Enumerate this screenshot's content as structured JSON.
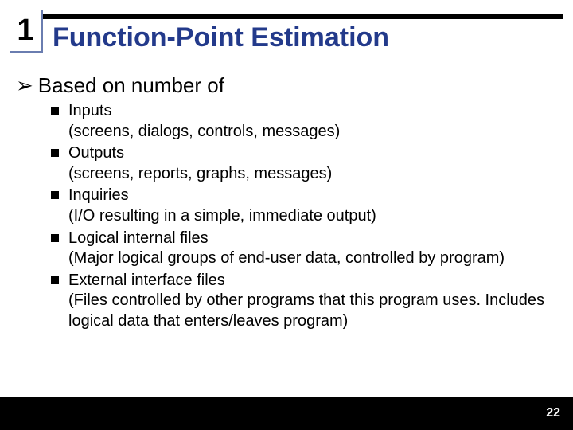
{
  "colors": {
    "title_color": "#233a8b",
    "rule_color": "#000000",
    "box_border": "#6a7db0",
    "text_color": "#000000",
    "footer_bg": "#000000",
    "footer_text": "#ffffff",
    "page_bg": "#ffffff"
  },
  "slide": {
    "number": "1",
    "title": "Function-Point Estimation",
    "lead_bullet": "➢",
    "lead_text": "Based on number of",
    "items": [
      {
        "label": "Inputs",
        "desc": "(screens, dialogs, controls, messages)"
      },
      {
        "label": "Outputs",
        "desc": "(screens, reports, graphs, messages)"
      },
      {
        "label": "Inquiries",
        "desc": "(I/O resulting in a simple, immediate output)"
      },
      {
        "label": "Logical internal files",
        "desc": "(Major logical groups of end-user data, controlled by program)"
      },
      {
        "label": "External interface files",
        "desc": "(Files controlled by other programs that this program uses.  Includes logical data that enters/leaves program)"
      }
    ],
    "page_number": "22"
  },
  "typography": {
    "title_fontsize_pt": 26,
    "number_fontsize_pt": 28,
    "lead_fontsize_pt": 20,
    "item_fontsize_pt": 15
  }
}
